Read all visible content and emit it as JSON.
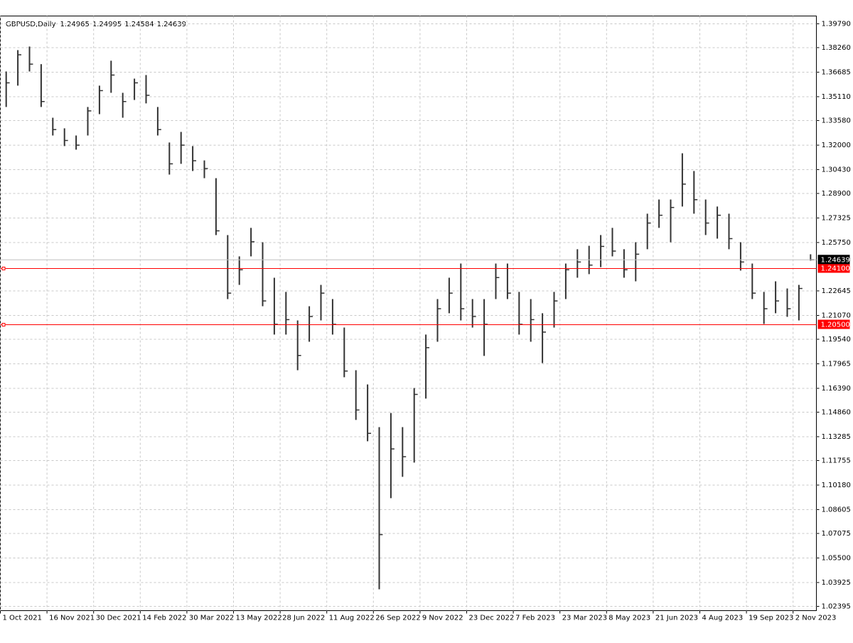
{
  "chart_data": {
    "type": "ohlc",
    "header": {
      "symbol": "GBPUSD,Daily",
      "open": 1.24965,
      "high": 1.24995,
      "low": 1.24584,
      "close": 1.24639
    },
    "color": "#333333",
    "grid": true,
    "high": [
      1.3673,
      1.381,
      1.3833,
      1.372,
      1.3376,
      1.3308,
      1.3262,
      1.3445,
      1.3582,
      1.3742,
      1.3536,
      1.3627,
      1.365,
      1.3445,
      1.3217,
      1.3285,
      1.3194,
      1.3102,
      1.2988,
      1.2623,
      1.2486,
      1.2669,
      1.2577,
      1.2349,
      1.2258,
      1.2075,
      1.2166,
      1.2303,
      1.2212,
      1.2029,
      1.1755,
      1.1664,
      1.139,
      1.1481,
      1.139,
      1.1641,
      1.1984,
      1.2212,
      1.2349,
      1.244,
      1.2212,
      1.2212,
      1.244,
      1.244,
      1.2258,
      1.2212,
      1.2121,
      1.2258,
      1.244,
      1.2532,
      1.2554,
      1.2623,
      1.2669,
      1.2532,
      1.2577,
      1.276,
      1.2851,
      1.2851,
      1.3148,
      1.3034,
      1.2851,
      1.2806,
      1.276,
      1.2577,
      1.244,
      1.2258,
      1.2326,
      1.228,
      1.2303,
      1.24995
    ],
    "low": [
      1.3445,
      1.3582,
      1.3673,
      1.3445,
      1.3262,
      1.3194,
      1.3171,
      1.3262,
      1.3399,
      1.3536,
      1.3376,
      1.349,
      1.3468,
      1.3262,
      1.3011,
      1.308,
      1.3034,
      1.2988,
      1.2623,
      1.2212,
      1.2303,
      1.2486,
      1.2166,
      1.1984,
      1.1984,
      1.1755,
      1.1938,
      1.2075,
      1.1984,
      1.171,
      1.1436,
      1.1299,
      1.0349,
      1.0934,
      1.1071,
      1.1162,
      1.1573,
      1.1938,
      1.2121,
      1.2075,
      1.2029,
      1.1847,
      1.2212,
      1.2212,
      1.1984,
      1.1938,
      1.1801,
      1.2029,
      1.2212,
      1.2349,
      1.2372,
      1.2417,
      1.2486,
      1.2349,
      1.2326,
      1.2532,
      1.2669,
      1.2577,
      1.2806,
      1.276,
      1.2623,
      1.26,
      1.2532,
      1.2395,
      1.2212,
      1.2052,
      1.2121,
      1.2098,
      1.2075,
      1.24584
    ],
    "close": [
      1.36,
      1.378,
      1.372,
      1.348,
      1.33,
      1.323,
      1.32,
      1.342,
      1.355,
      1.365,
      1.348,
      1.36,
      1.352,
      1.33,
      1.308,
      1.32,
      1.31,
      1.305,
      1.265,
      1.225,
      1.24,
      1.258,
      1.22,
      1.205,
      1.208,
      1.185,
      1.21,
      1.225,
      1.205,
      1.175,
      1.15,
      1.135,
      1.07,
      1.125,
      1.12,
      1.16,
      1.19,
      1.215,
      1.225,
      1.215,
      1.21,
      1.205,
      1.235,
      1.225,
      1.205,
      1.208,
      1.2,
      1.22,
      1.24,
      1.245,
      1.243,
      1.255,
      1.252,
      1.24,
      1.25,
      1.27,
      1.275,
      1.28,
      1.295,
      1.285,
      1.27,
      1.275,
      1.26,
      1.245,
      1.225,
      1.215,
      1.22,
      1.215,
      1.228,
      1.24639
    ],
    "xlim": [
      0,
      70
    ],
    "xticks": [
      {
        "value": 0,
        "label": "1 Oct 2021"
      },
      {
        "value": 4,
        "label": "16 Nov 2021"
      },
      {
        "value": 8,
        "label": "30 Dec 2021"
      },
      {
        "value": 12,
        "label": "14 Feb 2022"
      },
      {
        "value": 16,
        "label": "30 Mar 2022"
      },
      {
        "value": 20,
        "label": "13 May 2022"
      },
      {
        "value": 24,
        "label": "28 Jun 2022"
      },
      {
        "value": 28,
        "label": "11 Aug 2022"
      },
      {
        "value": 32,
        "label": "26 Sep 2022"
      },
      {
        "value": 36,
        "label": "9 Nov 2022"
      },
      {
        "value": 40,
        "label": "23 Dec 2022"
      },
      {
        "value": 44,
        "label": "7 Feb 2023"
      },
      {
        "value": 48,
        "label": "23 Mar 2023"
      },
      {
        "value": 52,
        "label": "8 May 2023"
      },
      {
        "value": 56,
        "label": "21 Jun 2023"
      },
      {
        "value": 60,
        "label": "4 Aug 2023"
      },
      {
        "value": 64,
        "label": "19 Sep 2023"
      },
      {
        "value": 68,
        "label": "2 Nov 2023"
      }
    ],
    "ylim": [
      1.0212,
      1.4029
    ],
    "yticks": [
      {
        "value": 1.3979,
        "label": "1.39790"
      },
      {
        "value": 1.3826,
        "label": "1.38260"
      },
      {
        "value": 1.36685,
        "label": "1.36685"
      },
      {
        "value": 1.3511,
        "label": "1.35110"
      },
      {
        "value": 1.3358,
        "label": "1.33580"
      },
      {
        "value": 1.32,
        "label": "1.32000"
      },
      {
        "value": 1.3043,
        "label": "1.30430"
      },
      {
        "value": 1.289,
        "label": "1.28900"
      },
      {
        "value": 1.27325,
        "label": "1.27325"
      },
      {
        "value": 1.2575,
        "label": "1.25750"
      },
      {
        "value": 1.22645,
        "label": "1.22645"
      },
      {
        "value": 1.2107,
        "label": "1.21070"
      },
      {
        "value": 1.1954,
        "label": "1.19540"
      },
      {
        "value": 1.17965,
        "label": "1.17965"
      },
      {
        "value": 1.1639,
        "label": "1.16390"
      },
      {
        "value": 1.1486,
        "label": "1.14860"
      },
      {
        "value": 1.13285,
        "label": "1.13285"
      },
      {
        "value": 1.11755,
        "label": "1.11755"
      },
      {
        "value": 1.1018,
        "label": "1.10180"
      },
      {
        "value": 1.08605,
        "label": "1.08605"
      },
      {
        "value": 1.07075,
        "label": "1.07075"
      },
      {
        "value": 1.055,
        "label": "1.05500"
      },
      {
        "value": 1.03925,
        "label": "1.03925"
      },
      {
        "value": 1.02395,
        "label": "1.02395"
      }
    ],
    "levels": {
      "color": "#ff0000",
      "lines": [
        {
          "value": 1.241,
          "label": "1.24100"
        },
        {
          "value": 1.205,
          "label": "1.20500"
        }
      ]
    },
    "price_label": {
      "value": 1.24639,
      "label": "1.24639"
    }
  }
}
